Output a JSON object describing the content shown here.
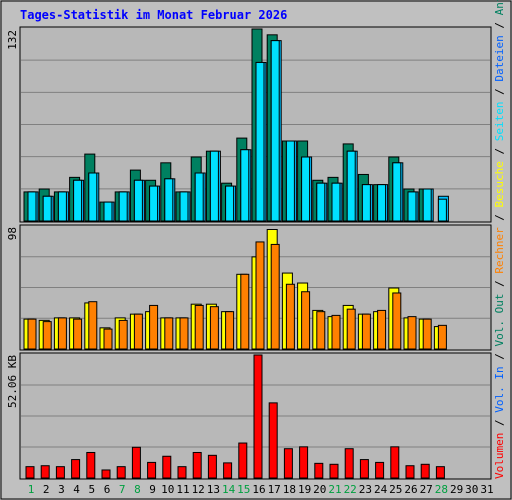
{
  "chart_data": [
    {
      "type": "bar",
      "title": "Tages-Statistik im Monat Februar 2026",
      "ymax_label": "132",
      "categories": [
        "1",
        "2",
        "3",
        "4",
        "5",
        "6",
        "7",
        "8",
        "9",
        "10",
        "11",
        "12",
        "13",
        "14",
        "15",
        "16",
        "17",
        "18",
        "19",
        "20",
        "21",
        "22",
        "23",
        "24",
        "25",
        "26",
        "27",
        "28",
        "29",
        "30",
        "31"
      ],
      "weekend_days": [
        "1",
        "7",
        "8",
        "14",
        "15",
        "21",
        "22",
        "28"
      ],
      "ylim": [
        0,
        132
      ],
      "grid": true,
      "series": [
        {
          "name": "Anfragen",
          "color": "#008060",
          "values": [
            20,
            22,
            20,
            30,
            46,
            13,
            20,
            35,
            28,
            40,
            20,
            44,
            48,
            26,
            57,
            132,
            128,
            55,
            55,
            28,
            30,
            53,
            32,
            25,
            44,
            22,
            22,
            0,
            0,
            0,
            0
          ]
        },
        {
          "name": "Dateien",
          "color": "#00C0FF",
          "values": [
            20,
            17,
            20,
            28,
            33,
            13,
            20,
            28,
            24,
            29,
            20,
            33,
            48,
            24,
            49,
            109,
            124,
            55,
            44,
            26,
            26,
            48,
            25,
            25,
            40,
            20,
            22,
            17,
            0,
            0,
            0
          ]
        },
        {
          "name": "Seiten",
          "color": "#00E0FF",
          "values": [
            20,
            17,
            20,
            28,
            33,
            13,
            20,
            28,
            24,
            29,
            20,
            33,
            48,
            24,
            49,
            109,
            124,
            55,
            44,
            26,
            26,
            48,
            25,
            25,
            40,
            20,
            22,
            15,
            0,
            0,
            0
          ]
        }
      ]
    },
    {
      "type": "bar",
      "ymax_label": "98",
      "categories": [
        "1",
        "2",
        "3",
        "4",
        "5",
        "6",
        "7",
        "8",
        "9",
        "10",
        "11",
        "12",
        "13",
        "14",
        "15",
        "16",
        "17",
        "18",
        "19",
        "20",
        "21",
        "22",
        "23",
        "24",
        "25",
        "26",
        "27",
        "28",
        "29",
        "30",
        "31"
      ],
      "ylim": [
        0,
        98
      ],
      "grid": true,
      "series": [
        {
          "name": "Besuche",
          "color": "#FFFF00",
          "values": [
            24,
            23,
            25,
            25,
            37,
            17,
            25,
            28,
            30,
            25,
            25,
            36,
            36,
            30,
            60,
            74,
            96,
            61,
            53,
            31,
            26,
            35,
            28,
            30,
            49,
            25,
            24,
            18,
            0,
            0,
            0
          ]
        },
        {
          "name": "Rechner",
          "color": "#FF8000",
          "values": [
            24,
            22,
            25,
            24,
            38,
            16,
            23,
            28,
            35,
            25,
            25,
            35,
            34,
            30,
            60,
            86,
            84,
            52,
            46,
            30,
            27,
            32,
            28,
            31,
            45,
            26,
            24,
            19,
            0,
            0,
            0
          ]
        }
      ]
    },
    {
      "type": "bar",
      "ymax_label": "52.06 KB",
      "categories": [
        "1",
        "2",
        "3",
        "4",
        "5",
        "6",
        "7",
        "8",
        "9",
        "10",
        "11",
        "12",
        "13",
        "14",
        "15",
        "16",
        "17",
        "18",
        "19",
        "20",
        "21",
        "22",
        "23",
        "24",
        "25",
        "26",
        "27",
        "28",
        "29",
        "30",
        "31"
      ],
      "ylim": [
        0,
        52.06
      ],
      "grid": true,
      "series": [
        {
          "name": "Volumen",
          "color": "#FF0000",
          "values": [
            4.8,
            5.2,
            4.8,
            7.8,
            10.8,
            3.4,
            4.8,
            13.0,
            6.6,
            9.2,
            4.8,
            10.8,
            9.6,
            6.4,
            14.8,
            52.06,
            31.8,
            12.4,
            13.2,
            6.2,
            5.8,
            12.4,
            7.8,
            6.6,
            13.2,
            5.2,
            5.8,
            4.8,
            0,
            0,
            0
          ]
        }
      ]
    }
  ],
  "legend": {
    "items": [
      {
        "label": "Anfragen",
        "color": "#008060"
      },
      {
        "label": "Dateien",
        "color": "#0060FF"
      },
      {
        "label": "Seiten",
        "color": "#00E0FF"
      },
      {
        "label": "Besuche",
        "color": "#FFFF00"
      },
      {
        "label": "Rechner",
        "color": "#FF8000"
      },
      {
        "label": "Vol. Out",
        "color": "#008060"
      },
      {
        "label": "Vol. In",
        "color": "#0060FF"
      },
      {
        "label": "Volumen",
        "color": "#FF0000"
      }
    ],
    "separator": " / "
  },
  "colors": {
    "background": "#C0C0C0",
    "plot": "#B8B8B8",
    "title": "#0000FF",
    "weekday_label": "#000000",
    "weekend_label": "#00A040"
  }
}
